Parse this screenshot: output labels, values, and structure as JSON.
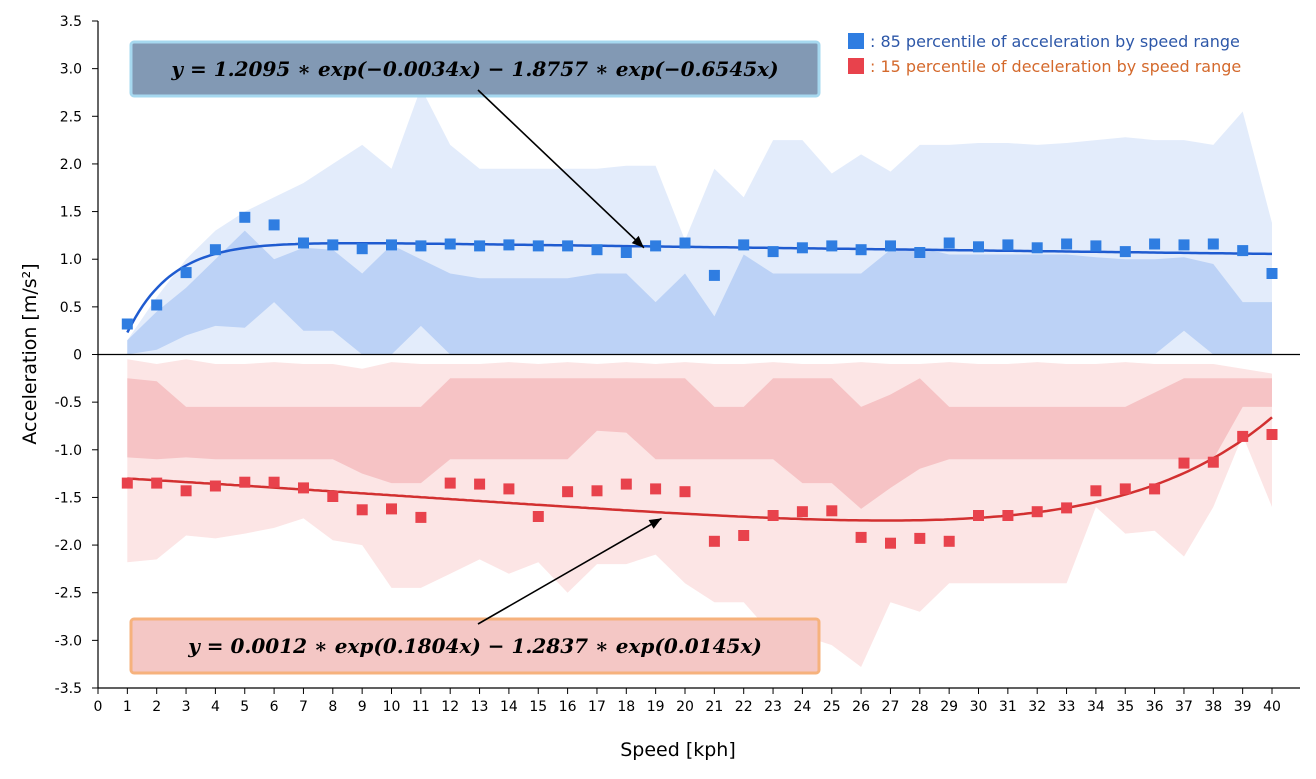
{
  "chart_data": {
    "type": "scatter",
    "title": "",
    "xlabel": "Speed [kph]",
    "ylabel": "Acceleration [m/s²]",
    "xlim": [
      0,
      40
    ],
    "ylim": [
      -3.5,
      3.5
    ],
    "x_ticks": [
      0,
      1,
      2,
      3,
      4,
      5,
      6,
      7,
      8,
      9,
      10,
      11,
      12,
      13,
      14,
      15,
      16,
      17,
      18,
      19,
      20,
      21,
      22,
      23,
      24,
      25,
      26,
      27,
      28,
      29,
      30,
      31,
      32,
      33,
      34,
      35,
      36,
      37,
      38,
      39,
      40
    ],
    "y_ticks": [
      -3.5,
      -3.0,
      -2.5,
      -2.0,
      -1.5,
      -1.0,
      -0.5,
      0,
      0.5,
      1.0,
      1.5,
      2.0,
      2.5,
      3.0,
      3.5
    ],
    "grid": false,
    "legend_position": "top-right",
    "legend": [
      {
        "marker": "■",
        "label": ": 85 percentile of acceleration by speed range",
        "color": "#2f7de1",
        "text_color": "#2d57a8"
      },
      {
        "marker": "■",
        "label": ": 15 percentile of deceleration by speed range",
        "color": "#e8424c",
        "text_color": "#d4692c"
      }
    ],
    "x": [
      1,
      2,
      3,
      4,
      5,
      6,
      7,
      8,
      9,
      10,
      11,
      12,
      13,
      14,
      15,
      16,
      17,
      18,
      19,
      20,
      21,
      22,
      23,
      24,
      25,
      26,
      27,
      28,
      29,
      30,
      31,
      32,
      33,
      34,
      35,
      36,
      37,
      38,
      39,
      40
    ],
    "series": [
      {
        "name": "85 percentile of acceleration by speed range",
        "color": "#2f7de1",
        "values": [
          0.32,
          0.52,
          0.86,
          1.1,
          1.44,
          1.36,
          1.17,
          1.15,
          1.11,
          1.15,
          1.14,
          1.16,
          1.14,
          1.15,
          1.14,
          1.14,
          1.1,
          1.07,
          1.14,
          1.17,
          0.83,
          1.15,
          1.08,
          1.12,
          1.14,
          1.1,
          1.14,
          1.07,
          1.17,
          1.13,
          1.15,
          1.12,
          1.16,
          1.14,
          1.08,
          1.16,
          1.15,
          1.16,
          1.09,
          0.85
        ]
      },
      {
        "name": "15 percentile of deceleration by speed range",
        "color": "#e8424c",
        "values": [
          -1.35,
          -1.35,
          -1.43,
          -1.38,
          -1.34,
          -1.34,
          -1.4,
          -1.49,
          -1.63,
          -1.62,
          -1.71,
          -1.35,
          -1.36,
          -1.41,
          -1.7,
          -1.44,
          -1.43,
          -1.36,
          -1.41,
          -1.44,
          -1.96,
          -1.9,
          -1.69,
          -1.65,
          -1.64,
          -1.92,
          -1.98,
          -1.93,
          -1.96,
          -1.69,
          -1.69,
          -1.65,
          -1.61,
          -1.43,
          -1.41,
          -1.41,
          -1.14,
          -1.13,
          -0.86,
          -0.84
        ]
      }
    ],
    "bands": [
      {
        "color": "#e3ecfb",
        "x": [
          1,
          2,
          3,
          4,
          5,
          6,
          7,
          8,
          9,
          10,
          11,
          12,
          13,
          14,
          15,
          16,
          17,
          18,
          19,
          20,
          21,
          22,
          23,
          24,
          25,
          26,
          27,
          28,
          29,
          30,
          31,
          32,
          33,
          34,
          35,
          36,
          37,
          38,
          39,
          40
        ],
        "upper": [
          0.15,
          0.6,
          1.0,
          1.3,
          1.5,
          1.65,
          1.8,
          2.0,
          2.2,
          1.95,
          2.8,
          2.2,
          1.95,
          1.95,
          1.95,
          1.95,
          1.95,
          1.98,
          1.98,
          1.2,
          1.95,
          1.65,
          2.25,
          2.25,
          1.9,
          2.1,
          1.92,
          2.2,
          2.2,
          2.22,
          2.22,
          2.2,
          2.22,
          2.25,
          2.28,
          2.25,
          2.25,
          2.2,
          2.55,
          1.38
        ],
        "lower": [
          0,
          0,
          0,
          0,
          0,
          0,
          0,
          0,
          0,
          0,
          0,
          0,
          0,
          0,
          0,
          0,
          0,
          0,
          0,
          0,
          0,
          0,
          0,
          0,
          0,
          0,
          0,
          0,
          0,
          0,
          0,
          0,
          0,
          0,
          0,
          0,
          0,
          0,
          0,
          0
        ]
      },
      {
        "color": "#bcd2f6",
        "x": [
          1,
          2,
          3,
          4,
          5,
          6,
          7,
          8,
          9,
          10,
          11,
          12,
          13,
          14,
          15,
          16,
          17,
          18,
          19,
          20,
          21,
          22,
          23,
          24,
          25,
          26,
          27,
          28,
          29,
          30,
          31,
          32,
          33,
          34,
          35,
          36,
          37,
          38,
          39,
          40
        ],
        "upper": [
          0.15,
          0.45,
          0.7,
          1.0,
          1.3,
          1.0,
          1.12,
          1.1,
          0.85,
          1.15,
          1.0,
          0.85,
          0.8,
          0.8,
          0.8,
          0.8,
          0.85,
          0.85,
          0.55,
          0.85,
          0.4,
          1.05,
          0.85,
          0.85,
          0.85,
          0.85,
          1.1,
          1.12,
          1.05,
          1.05,
          1.05,
          1.05,
          1.05,
          1.02,
          1.0,
          1.0,
          1.02,
          0.95,
          0.55,
          0.55
        ],
        "lower": [
          0,
          0.05,
          0.2,
          0.3,
          0.28,
          0.55,
          0.25,
          0.25,
          0,
          0,
          0.3,
          0,
          0,
          0,
          0,
          0,
          0,
          0,
          0,
          0,
          0,
          0,
          0,
          0,
          0,
          0,
          0,
          0,
          0,
          0,
          0,
          0,
          0,
          0,
          0,
          0,
          0.25,
          0,
          0,
          0
        ]
      },
      {
        "color": "#fce5e5",
        "x": [
          1,
          2,
          3,
          4,
          5,
          6,
          7,
          8,
          9,
          10,
          11,
          12,
          13,
          14,
          15,
          16,
          17,
          18,
          19,
          20,
          21,
          22,
          23,
          24,
          25,
          26,
          27,
          28,
          29,
          30,
          31,
          32,
          33,
          34,
          35,
          36,
          37,
          38,
          39,
          40
        ],
        "upper": [
          -0.05,
          -0.1,
          -0.05,
          -0.1,
          -0.1,
          -0.08,
          -0.1,
          -0.1,
          -0.15,
          -0.08,
          -0.1,
          -0.1,
          -0.1,
          -0.08,
          -0.1,
          -0.08,
          -0.1,
          -0.08,
          -0.1,
          -0.08,
          -0.1,
          -0.1,
          -0.08,
          -0.1,
          -0.1,
          -0.08,
          -0.1,
          -0.1,
          -0.08,
          -0.1,
          -0.1,
          -0.08,
          -0.1,
          -0.1,
          -0.08,
          -0.1,
          -0.1,
          -0.1,
          -0.15,
          -0.2
        ],
        "lower": [
          -2.18,
          -2.15,
          -1.9,
          -1.93,
          -1.88,
          -1.82,
          -1.72,
          -1.95,
          -2.0,
          -2.45,
          -2.45,
          -2.3,
          -2.15,
          -2.3,
          -2.18,
          -2.5,
          -2.2,
          -2.2,
          -2.1,
          -2.4,
          -2.6,
          -2.6,
          -2.95,
          -2.95,
          -3.05,
          -3.28,
          -2.6,
          -2.7,
          -2.4,
          -2.4,
          -2.4,
          -2.4,
          -2.4,
          -1.6,
          -1.88,
          -1.85,
          -2.12,
          -1.6,
          -0.85,
          -1.6
        ]
      },
      {
        "color": "#f6c3c5",
        "x": [
          1,
          2,
          3,
          4,
          5,
          6,
          7,
          8,
          9,
          10,
          11,
          12,
          13,
          14,
          15,
          16,
          17,
          18,
          19,
          20,
          21,
          22,
          23,
          24,
          25,
          26,
          27,
          28,
          29,
          30,
          31,
          32,
          33,
          34,
          35,
          36,
          37,
          38,
          39,
          40
        ],
        "upper": [
          -0.25,
          -0.28,
          -0.55,
          -0.55,
          -0.55,
          -0.55,
          -0.55,
          -0.55,
          -0.55,
          -0.55,
          -0.55,
          -0.25,
          -0.25,
          -0.25,
          -0.25,
          -0.25,
          -0.25,
          -0.25,
          -0.25,
          -0.25,
          -0.55,
          -0.55,
          -0.25,
          -0.25,
          -0.25,
          -0.55,
          -0.42,
          -0.25,
          -0.55,
          -0.55,
          -0.55,
          -0.55,
          -0.55,
          -0.55,
          -0.55,
          -0.4,
          -0.25,
          -0.25,
          -0.25,
          -0.25
        ],
        "lower": [
          -1.08,
          -1.1,
          -1.08,
          -1.1,
          -1.1,
          -1.1,
          -1.1,
          -1.1,
          -1.25,
          -1.35,
          -1.35,
          -1.1,
          -1.1,
          -1.1,
          -1.1,
          -1.1,
          -0.8,
          -0.82,
          -1.1,
          -1.1,
          -1.1,
          -1.1,
          -1.1,
          -1.35,
          -1.35,
          -1.62,
          -1.4,
          -1.2,
          -1.1,
          -1.1,
          -1.1,
          -1.1,
          -1.1,
          -1.1,
          -1.1,
          -1.1,
          -1.1,
          -1.1,
          -0.55,
          -0.55
        ]
      }
    ],
    "fits": [
      {
        "equation": "y = 1.2095 ∗ exp(−0.0034x) − 1.8757 ∗ exp(−0.6545x)",
        "color": "#1f5bd0",
        "model": "double_exp",
        "params": [
          1.2095,
          -0.0034,
          -1.8757,
          -0.6545
        ],
        "x_range": [
          1,
          40
        ]
      },
      {
        "equation": "y = 0.0012 ∗ exp(0.1804x) − 1.2837 ∗ exp(0.0145x)",
        "color": "#d23030",
        "model": "double_exp",
        "params": [
          0.0012,
          0.1804,
          -1.2837,
          0.0145
        ],
        "x_range": [
          1,
          40
        ]
      }
    ],
    "annotations": [
      {
        "text": "y = 1.2095 ∗ exp(−0.0034x) − 1.8757 ∗ exp(−0.6545x)",
        "box_fill": "#8299b4",
        "box_stroke": "#a6d8ef",
        "arrow_to": [
          18.6,
          1.12
        ]
      },
      {
        "text": "y = 0.0012 ∗ exp(0.1804x) − 1.2837 ∗ exp(0.0145x)",
        "box_fill": "#f4c7c5",
        "box_stroke": "#f6b27d",
        "arrow_to": [
          19.2,
          -1.72
        ]
      }
    ]
  }
}
